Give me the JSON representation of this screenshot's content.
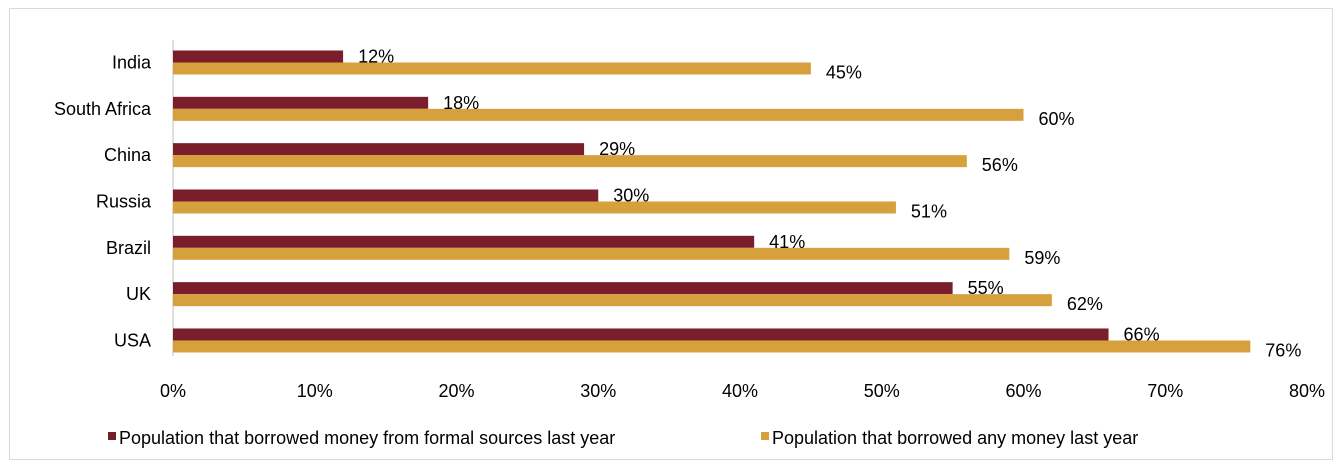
{
  "chart_data": {
    "type": "bar",
    "orientation": "horizontal",
    "categories": [
      "India",
      "South Africa",
      "China",
      "Russia",
      "Brazil",
      "UK",
      "USA"
    ],
    "series": [
      {
        "name": "Population that borrowed money from formal sources last year",
        "values": [
          12,
          18,
          29,
          30,
          41,
          55,
          66
        ],
        "color": "#7b1e2b"
      },
      {
        "name": "Population that borrowed any money last year",
        "values": [
          45,
          60,
          56,
          51,
          59,
          62,
          76
        ],
        "color": "#d6a03c"
      }
    ],
    "value_labels": [
      [
        "12%",
        "18%",
        "29%",
        "30%",
        "41%",
        "55%",
        "66%"
      ],
      [
        "45%",
        "60%",
        "56%",
        "51%",
        "59%",
        "62%",
        "76%"
      ]
    ],
    "xlim": [
      0,
      80
    ],
    "xticks": [
      0,
      10,
      20,
      30,
      40,
      50,
      60,
      70,
      80
    ],
    "xtick_labels": [
      "0%",
      "10%",
      "20%",
      "30%",
      "40%",
      "50%",
      "60%",
      "70%",
      "80%"
    ],
    "grid": false,
    "legend_position": "bottom"
  }
}
